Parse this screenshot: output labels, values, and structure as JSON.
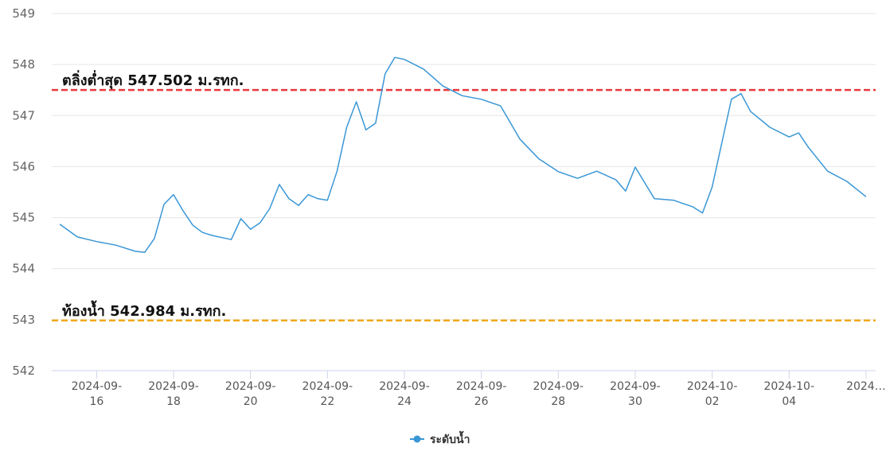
{
  "chart_data": {
    "type": "line",
    "x": [
      "2024-09-15T01:00",
      "2024-09-15T12:00",
      "2024-09-16T00:00",
      "2024-09-16T12:00",
      "2024-09-17T00:00",
      "2024-09-17T06:00",
      "2024-09-17T12:00",
      "2024-09-17T18:00",
      "2024-09-18T00:00",
      "2024-09-18T06:00",
      "2024-09-18T12:00",
      "2024-09-18T18:00",
      "2024-09-19T00:00",
      "2024-09-19T12:00",
      "2024-09-19T18:00",
      "2024-09-20T00:00",
      "2024-09-20T06:00",
      "2024-09-20T12:00",
      "2024-09-20T18:00",
      "2024-09-21T00:00",
      "2024-09-21T06:00",
      "2024-09-21T12:00",
      "2024-09-21T18:00",
      "2024-09-22T00:00",
      "2024-09-22T06:00",
      "2024-09-22T12:00",
      "2024-09-22T18:00",
      "2024-09-23T00:00",
      "2024-09-23T06:00",
      "2024-09-23T12:00",
      "2024-09-23T18:00",
      "2024-09-24T00:00",
      "2024-09-24T12:00",
      "2024-09-25T00:00",
      "2024-09-25T12:00",
      "2024-09-26T00:00",
      "2024-09-26T12:00",
      "2024-09-27T00:00",
      "2024-09-27T12:00",
      "2024-09-28T00:00",
      "2024-09-28T12:00",
      "2024-09-29T00:00",
      "2024-09-29T12:00",
      "2024-09-29T18:00",
      "2024-09-30T00:00",
      "2024-09-30T12:00",
      "2024-10-01T00:00",
      "2024-10-01T12:00",
      "2024-10-01T18:00",
      "2024-10-02T00:00",
      "2024-10-02T12:00",
      "2024-10-02T18:00",
      "2024-10-03T00:00",
      "2024-10-03T12:00",
      "2024-10-04T00:00",
      "2024-10-04T06:00",
      "2024-10-04T12:00",
      "2024-10-05T00:00",
      "2024-10-05T12:00",
      "2024-10-06T00:00"
    ],
    "series": [
      {
        "name": "ระดับน้ำ",
        "color": "#3a97d6",
        "values": [
          544.87,
          544.62,
          544.53,
          544.46,
          544.34,
          544.32,
          544.59,
          545.26,
          545.45,
          545.13,
          544.85,
          544.71,
          544.65,
          544.57,
          544.98,
          544.77,
          544.9,
          545.18,
          545.65,
          545.37,
          545.24,
          545.45,
          545.37,
          545.34,
          545.91,
          546.77,
          547.27,
          546.72,
          546.85,
          547.82,
          548.14,
          548.1,
          547.91,
          547.58,
          547.39,
          547.32,
          547.19,
          546.54,
          546.15,
          545.9,
          545.77,
          545.91,
          545.74,
          545.52,
          545.99,
          545.37,
          545.34,
          545.21,
          545.09,
          545.6,
          547.32,
          547.43,
          547.08,
          546.77,
          546.58,
          546.66,
          546.38,
          545.91,
          545.71,
          545.41
        ]
      }
    ],
    "reference_lines": [
      {
        "label": "ตลิ่งต่ำสุด 547.502 ม.รทก.",
        "value": 547.502,
        "color": "#e8383d"
      },
      {
        "label": "ท้องน้ำ 542.984 ม.รทก.",
        "value": 542.984,
        "color": "#f0a818"
      }
    ],
    "xlim": [
      "2024-09-14T20:00",
      "2024-10-06T06:00"
    ],
    "xticks": [
      {
        "value": "2024-09-16",
        "label": "2024-09-16"
      },
      {
        "value": "2024-09-18",
        "label": "2024-09-18"
      },
      {
        "value": "2024-09-20",
        "label": "2024-09-20"
      },
      {
        "value": "2024-09-22",
        "label": "2024-09-22"
      },
      {
        "value": "2024-09-24",
        "label": "2024-09-24"
      },
      {
        "value": "2024-09-26",
        "label": "2024-09-26"
      },
      {
        "value": "2024-09-28",
        "label": "2024-09-28"
      },
      {
        "value": "2024-09-30",
        "label": "2024-09-30"
      },
      {
        "value": "2024-10-02",
        "label": "2024-10-02"
      },
      {
        "value": "2024-10-04",
        "label": "2024-10-04"
      },
      {
        "value": "2024-10-06",
        "label": "2024…"
      }
    ],
    "ylim": [
      542,
      549
    ],
    "yticks": [
      542,
      543,
      544,
      545,
      546,
      547,
      548,
      549
    ],
    "grid": true
  }
}
